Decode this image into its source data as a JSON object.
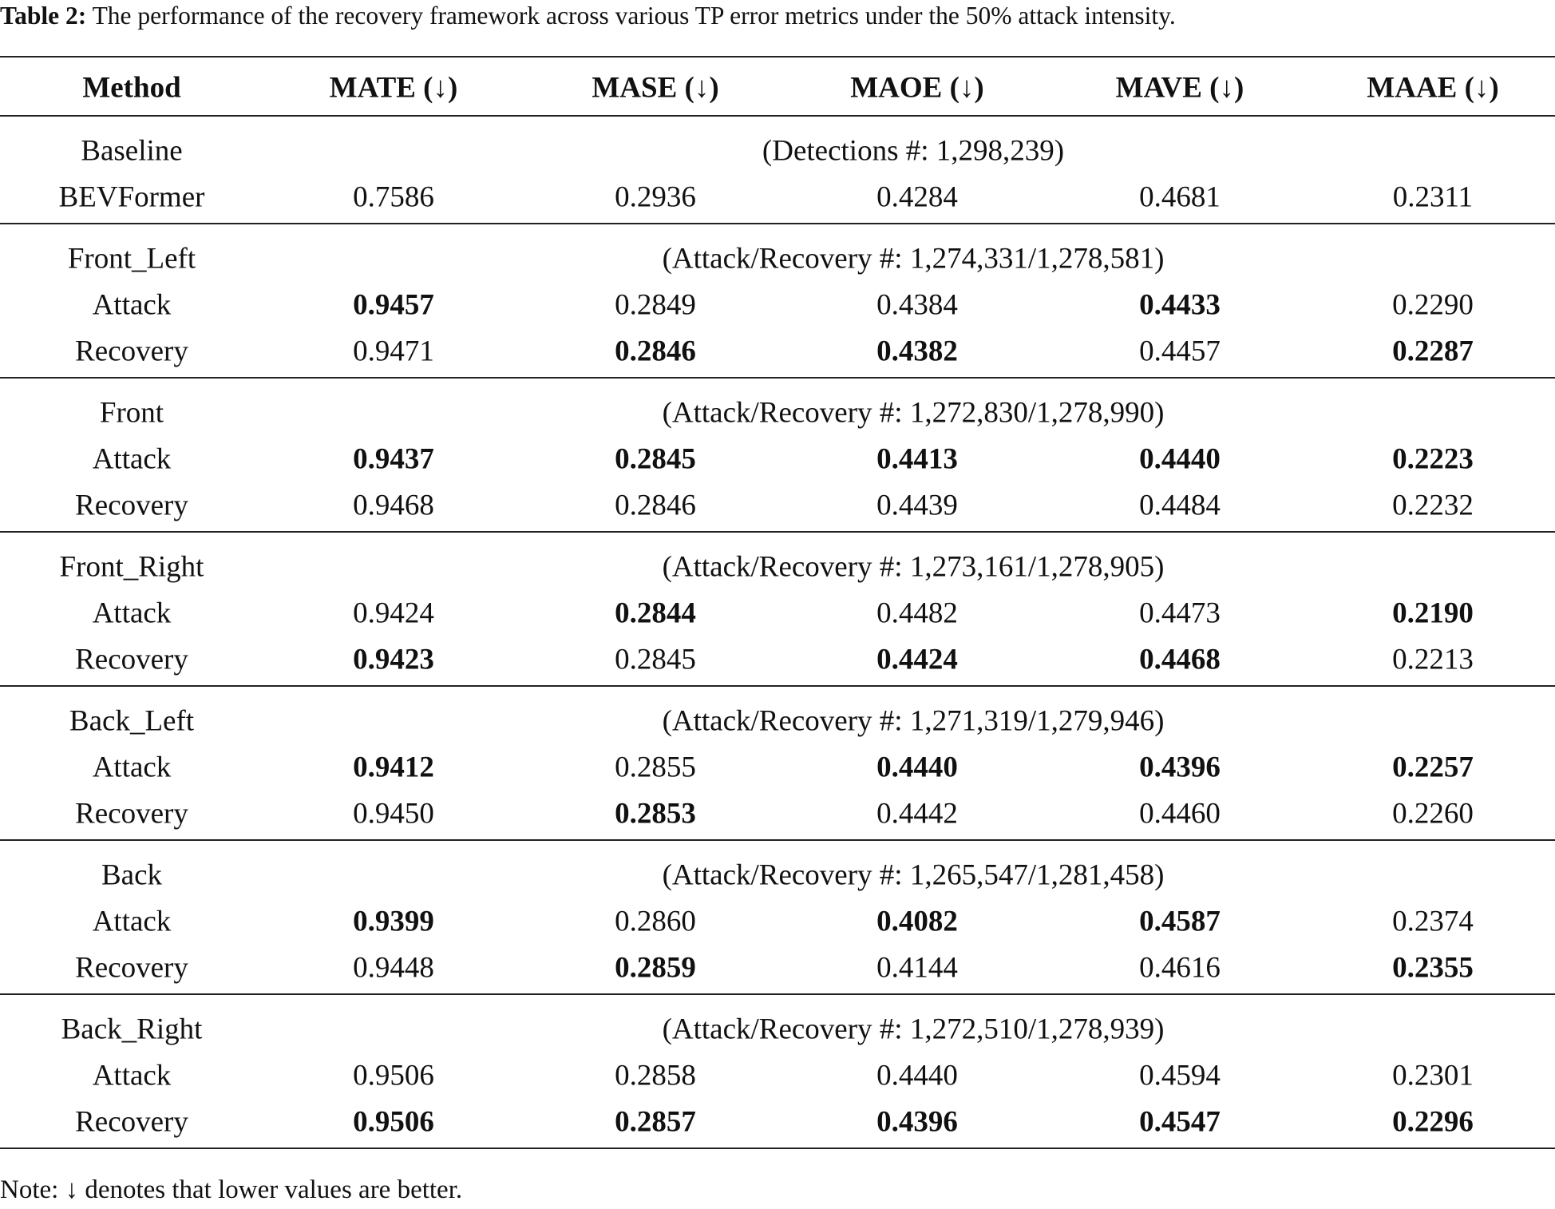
{
  "caption": {
    "label": "Table 2:",
    "text": "The performance of the recovery framework across various TP error metrics under the 50% attack intensity."
  },
  "table": {
    "header": [
      "Method",
      "MATE (↓)",
      "MASE (↓)",
      "MAOE (↓)",
      "MAVE (↓)",
      "MAAE (↓)"
    ],
    "groups": [
      {
        "name": "Baseline",
        "info": "(Detections #: 1,298,239)",
        "rows": [
          {
            "label": "BEVFormer",
            "values": [
              "0.7586",
              "0.2936",
              "0.4284",
              "0.4681",
              "0.2311"
            ],
            "bold": [
              false,
              false,
              false,
              false,
              false
            ]
          }
        ]
      },
      {
        "name": "Front_Left",
        "info": "(Attack/Recovery #: 1,274,331/1,278,581)",
        "rows": [
          {
            "label": "Attack",
            "values": [
              "0.9457",
              "0.2849",
              "0.4384",
              "0.4433",
              "0.2290"
            ],
            "bold": [
              true,
              false,
              false,
              true,
              false
            ]
          },
          {
            "label": "Recovery",
            "values": [
              "0.9471",
              "0.2846",
              "0.4382",
              "0.4457",
              "0.2287"
            ],
            "bold": [
              false,
              true,
              true,
              false,
              true
            ]
          }
        ]
      },
      {
        "name": "Front",
        "info": "(Attack/Recovery #: 1,272,830/1,278,990)",
        "rows": [
          {
            "label": "Attack",
            "values": [
              "0.9437",
              "0.2845",
              "0.4413",
              "0.4440",
              "0.2223"
            ],
            "bold": [
              true,
              true,
              true,
              true,
              true
            ]
          },
          {
            "label": "Recovery",
            "values": [
              "0.9468",
              "0.2846",
              "0.4439",
              "0.4484",
              "0.2232"
            ],
            "bold": [
              false,
              false,
              false,
              false,
              false
            ]
          }
        ]
      },
      {
        "name": "Front_Right",
        "info": "(Attack/Recovery #: 1,273,161/1,278,905)",
        "rows": [
          {
            "label": "Attack",
            "values": [
              "0.9424",
              "0.2844",
              "0.4482",
              "0.4473",
              "0.2190"
            ],
            "bold": [
              false,
              true,
              false,
              false,
              true
            ]
          },
          {
            "label": "Recovery",
            "values": [
              "0.9423",
              "0.2845",
              "0.4424",
              "0.4468",
              "0.2213"
            ],
            "bold": [
              true,
              false,
              true,
              true,
              false
            ]
          }
        ]
      },
      {
        "name": "Back_Left",
        "info": "(Attack/Recovery #: 1,271,319/1,279,946)",
        "rows": [
          {
            "label": "Attack",
            "values": [
              "0.9412",
              "0.2855",
              "0.4440",
              "0.4396",
              "0.2257"
            ],
            "bold": [
              true,
              false,
              true,
              true,
              true
            ]
          },
          {
            "label": "Recovery",
            "values": [
              "0.9450",
              "0.2853",
              "0.4442",
              "0.4460",
              "0.2260"
            ],
            "bold": [
              false,
              true,
              false,
              false,
              false
            ]
          }
        ]
      },
      {
        "name": "Back",
        "info": "(Attack/Recovery #: 1,265,547/1,281,458)",
        "rows": [
          {
            "label": "Attack",
            "values": [
              "0.9399",
              "0.2860",
              "0.4082",
              "0.4587",
              "0.2374"
            ],
            "bold": [
              true,
              false,
              true,
              true,
              false
            ]
          },
          {
            "label": "Recovery",
            "values": [
              "0.9448",
              "0.2859",
              "0.4144",
              "0.4616",
              "0.2355"
            ],
            "bold": [
              false,
              true,
              false,
              false,
              true
            ]
          }
        ]
      },
      {
        "name": "Back_Right",
        "info": "(Attack/Recovery #: 1,272,510/1,278,939)",
        "rows": [
          {
            "label": "Attack",
            "values": [
              "0.9506",
              "0.2858",
              "0.4440",
              "0.4594",
              "0.2301"
            ],
            "bold": [
              false,
              false,
              false,
              false,
              false
            ]
          },
          {
            "label": "Recovery",
            "values": [
              "0.9506",
              "0.2857",
              "0.4396",
              "0.4547",
              "0.2296"
            ],
            "bold": [
              true,
              true,
              true,
              true,
              true
            ]
          }
        ]
      }
    ]
  },
  "note": "Note: ↓ denotes that lower values are better."
}
